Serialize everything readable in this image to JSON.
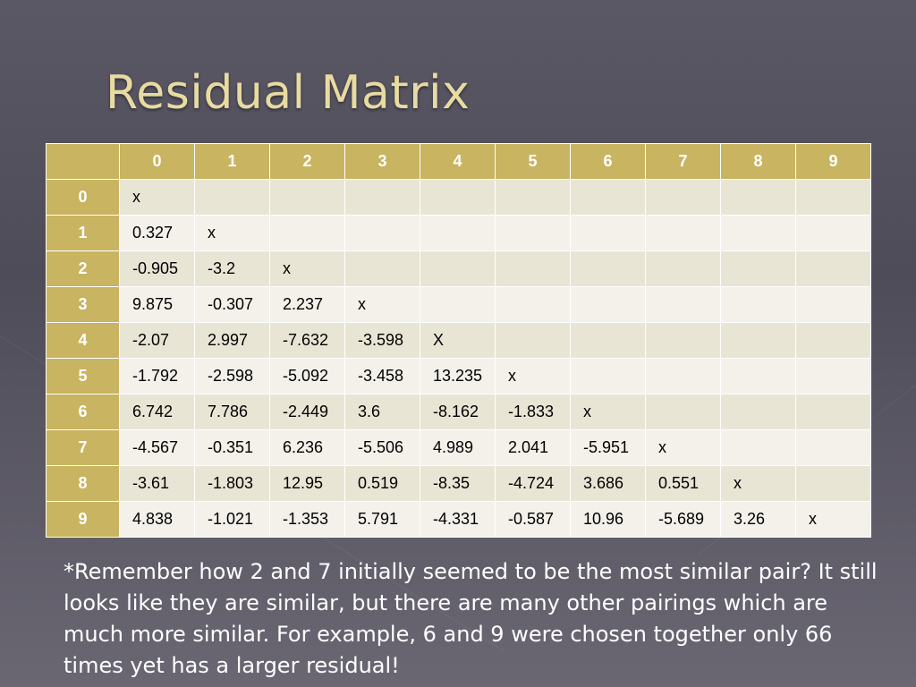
{
  "slide": {
    "title": "Residual Matrix",
    "note": "*Remember how 2 and 7 initially seemed to be the most similar pair? It still looks like they are similar, but there are many other pairings which are much more similar. For example, 6 and 9 were chosen together only 66 times yet has a larger residual!"
  },
  "colors": {
    "title": "#e8dba2",
    "header_fill": "#c8b461",
    "row_fill_a": "#e9e5d5",
    "row_fill_b": "#f3f1ea"
  },
  "table": {
    "columns": [
      "0",
      "1",
      "2",
      "3",
      "4",
      "5",
      "6",
      "7",
      "8",
      "9"
    ],
    "rows": [
      {
        "label": "0",
        "cells": [
          "x",
          "",
          "",
          "",
          "",
          "",
          "",
          "",
          "",
          ""
        ]
      },
      {
        "label": "1",
        "cells": [
          "0.327",
          "x",
          "",
          "",
          "",
          "",
          "",
          "",
          "",
          ""
        ]
      },
      {
        "label": "2",
        "cells": [
          "-0.905",
          "-3.2",
          "x",
          "",
          "",
          "",
          "",
          "",
          "",
          ""
        ]
      },
      {
        "label": "3",
        "cells": [
          "9.875",
          "-0.307",
          "2.237",
          "x",
          "",
          "",
          "",
          "",
          "",
          ""
        ]
      },
      {
        "label": "4",
        "cells": [
          "-2.07",
          "2.997",
          "-7.632",
          "-3.598",
          "X",
          "",
          "",
          "",
          "",
          ""
        ]
      },
      {
        "label": "5",
        "cells": [
          "-1.792",
          "-2.598",
          "-5.092",
          "-3.458",
          "13.235",
          "x",
          "",
          "",
          "",
          ""
        ]
      },
      {
        "label": "6",
        "cells": [
          "6.742",
          "7.786",
          "-2.449",
          "3.6",
          "-8.162",
          "-1.833",
          "x",
          "",
          "",
          ""
        ]
      },
      {
        "label": "7",
        "cells": [
          "-4.567",
          "-0.351",
          "6.236",
          "-5.506",
          "4.989",
          "2.041",
          "-5.951",
          "x",
          "",
          ""
        ]
      },
      {
        "label": "8",
        "cells": [
          "-3.61",
          "-1.803",
          "12.95",
          "0.519",
          "-8.35",
          "-4.724",
          "3.686",
          "0.551",
          "x",
          ""
        ]
      },
      {
        "label": "9",
        "cells": [
          "4.838",
          "-1.021",
          "-1.353",
          "5.791",
          "-4.331",
          "-0.587",
          "10.96",
          "-5.689",
          "3.26",
          "x"
        ]
      }
    ]
  }
}
